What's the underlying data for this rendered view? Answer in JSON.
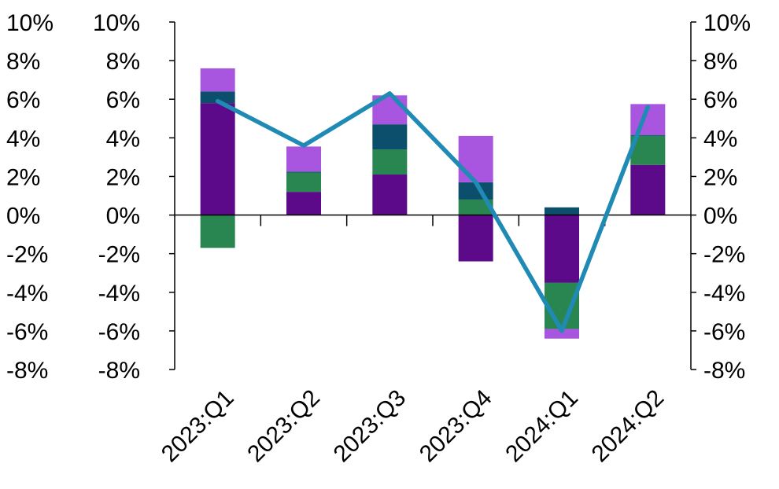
{
  "chart_data": {
    "type": "bar",
    "stacked": true,
    "categories": [
      "2023:Q1",
      "2023:Q2",
      "2023:Q3",
      "2023:Q4",
      "2024:Q1",
      "2024:Q2"
    ],
    "series": [
      {
        "type": "bar",
        "color": "#5c0a8a",
        "values": [
          5.8,
          1.2,
          2.1,
          -2.4,
          -3.5,
          2.6
        ]
      },
      {
        "type": "bar",
        "color": "#2a8650",
        "values": [
          -1.7,
          1.0,
          1.3,
          0.8,
          -2.4,
          1.5
        ]
      },
      {
        "type": "bar",
        "color": "#0b4f6c",
        "values": [
          0.6,
          0.05,
          1.3,
          0.9,
          0.4,
          0.05
        ]
      },
      {
        "type": "bar",
        "color": "#a855e0",
        "values": [
          1.2,
          1.3,
          1.5,
          2.4,
          -0.5,
          1.6
        ]
      },
      {
        "type": "line",
        "color": "#1f8bb5",
        "values": [
          5.9,
          3.6,
          6.3,
          1.7,
          -6.0,
          5.6
        ]
      }
    ],
    "y_left": {
      "min": -8,
      "max": 10,
      "step": 2,
      "format": "percent"
    },
    "y_right": {
      "min": -8,
      "max": 10,
      "step": 2,
      "format": "percent"
    },
    "outer_tick_labels": [
      "10%",
      "8%",
      "6%",
      "4%",
      "2%",
      "0%",
      "-2%",
      "-4%",
      "-6%",
      "-8%"
    ],
    "inner_tick_labels": [
      "10%",
      "8%",
      "6%",
      "4%",
      "2%",
      "0%",
      "-2%",
      "-4%",
      "-6%",
      "-8%"
    ],
    "right_tick_labels": [
      "10%",
      "8%",
      "6%",
      "4%",
      "2%",
      "0%",
      "-2%",
      "-4%",
      "-6%",
      "-8%"
    ],
    "title": "",
    "xlabel": "",
    "ylabel": "",
    "grid": false,
    "legend": "none"
  }
}
